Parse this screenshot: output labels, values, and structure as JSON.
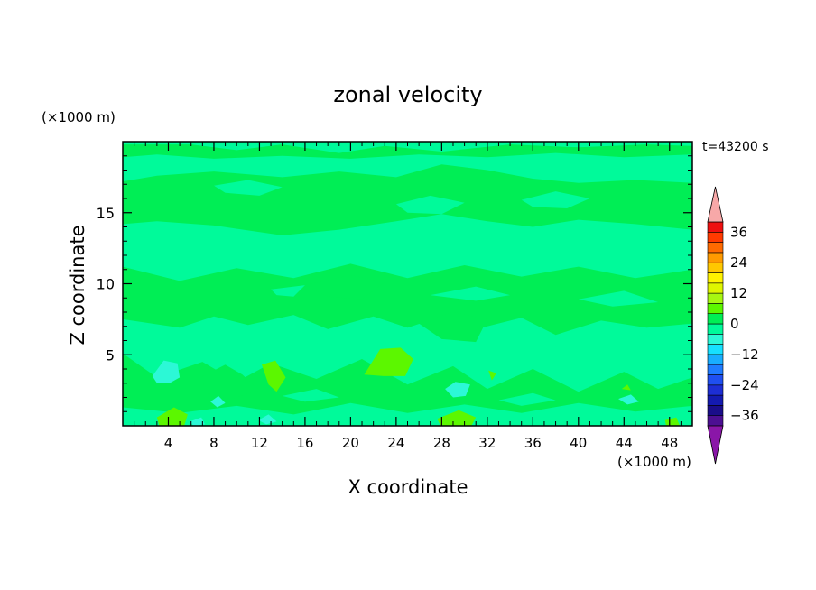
{
  "chart_data": {
    "type": "heatmap",
    "title": "zonal velocity",
    "time_label": "t=43200 s",
    "xlabel": "X coordinate",
    "ylabel": "Z coordinate",
    "x_unit": "(×1000 m)",
    "y_unit": "(×1000 m)",
    "xlim": [
      0,
      50
    ],
    "ylim": [
      0,
      20
    ],
    "x_ticks": [
      4,
      8,
      12,
      16,
      20,
      24,
      28,
      32,
      36,
      40,
      44,
      48
    ],
    "y_ticks": [
      5,
      10,
      15
    ],
    "colorbar": {
      "levels": [
        -40,
        -36,
        -32,
        -28,
        -24,
        -20,
        -16,
        -12,
        -8,
        -4,
        0,
        4,
        8,
        12,
        16,
        20,
        24,
        28,
        32,
        36,
        40
      ],
      "tick_labels": [
        36,
        24,
        12,
        0,
        -12,
        -24,
        -36
      ],
      "colors": [
        "#4c0f92",
        "#1a0d8a",
        "#141ab0",
        "#1d2ed4",
        "#1f4ff0",
        "#1f7bff",
        "#19adff",
        "#17e0ff",
        "#2cf8d6",
        "#00fa9a",
        "#00ee55",
        "#5cf700",
        "#a7f711",
        "#dff500",
        "#fff200",
        "#ffc800",
        "#ff9a00",
        "#ff6a00",
        "#ff3a00",
        "#ee1010"
      ],
      "extend_low_color": "#8a16a8",
      "extend_high_color": "#f7a8a8"
    },
    "regions": [
      {
        "level": "0 to 4",
        "color": "#00ee55",
        "polygons": [
          [
            [
              0,
              17.2
            ],
            [
              3,
              17.6
            ],
            [
              8,
              17.9
            ],
            [
              14,
              17.5
            ],
            [
              19,
              17.9
            ],
            [
              24,
              17.5
            ],
            [
              28,
              18.4
            ],
            [
              32,
              18.0
            ],
            [
              36,
              17.4
            ],
            [
              40,
              17.1
            ],
            [
              45,
              17.3
            ],
            [
              50,
              17.1
            ],
            [
              50,
              13.8
            ],
            [
              45,
              14.2
            ],
            [
              40,
              14.5
            ],
            [
              36,
              14.0
            ],
            [
              32,
              14.4
            ],
            [
              28,
              14.9
            ],
            [
              24,
              14.4
            ],
            [
              19,
              13.8
            ],
            [
              14,
              13.4
            ],
            [
              8,
              14.1
            ],
            [
              3,
              14.4
            ],
            [
              0,
              14.2
            ]
          ],
          [
            [
              0,
              11.2
            ],
            [
              5,
              10.2
            ],
            [
              10,
              11.1
            ],
            [
              15,
              10.4
            ],
            [
              20,
              11.4
            ],
            [
              25,
              10.4
            ],
            [
              30,
              11.3
            ],
            [
              35,
              10.5
            ],
            [
              40,
              11.2
            ],
            [
              45,
              10.4
            ],
            [
              50,
              11.0
            ],
            [
              50,
              7.2
            ],
            [
              46,
              6.9
            ],
            [
              42,
              7.4
            ],
            [
              38,
              6.4
            ],
            [
              35,
              7.6
            ],
            [
              31,
              6.8
            ],
            [
              28,
              7.7
            ],
            [
              25,
              6.9
            ],
            [
              22,
              7.7
            ],
            [
              18,
              6.8
            ],
            [
              15,
              7.8
            ],
            [
              11,
              7.1
            ],
            [
              8,
              7.7
            ],
            [
              5,
              6.9
            ],
            [
              0,
              7.5
            ]
          ],
          [
            [
              0,
              19.8
            ],
            [
              6,
              19.8
            ],
            [
              10,
              19.4
            ],
            [
              14,
              19.8
            ],
            [
              19,
              19.2
            ],
            [
              23,
              19.7
            ],
            [
              28,
              19.3
            ],
            [
              34,
              19.8
            ],
            [
              40,
              19.6
            ],
            [
              46,
              19.8
            ],
            [
              50,
              19.7
            ],
            [
              50,
              19.1
            ],
            [
              44,
              18.9
            ],
            [
              38,
              19.2
            ],
            [
              32,
              18.9
            ],
            [
              26,
              19.1
            ],
            [
              20,
              18.8
            ],
            [
              14,
              19.0
            ],
            [
              8,
              18.8
            ],
            [
              3,
              19.1
            ],
            [
              0,
              18.9
            ]
          ],
          [
            [
              0,
              5.1
            ],
            [
              3,
              3.4
            ],
            [
              7,
              4.5
            ],
            [
              10,
              3.1
            ],
            [
              13,
              4.4
            ],
            [
              17,
              3.3
            ],
            [
              21,
              4.7
            ],
            [
              25,
              2.9
            ],
            [
              29,
              4.2
            ],
            [
              32,
              2.6
            ],
            [
              36,
              4.0
            ],
            [
              40,
              2.4
            ],
            [
              44,
              3.8
            ],
            [
              47,
              2.6
            ],
            [
              50,
              3.4
            ],
            [
              50,
              1.4
            ],
            [
              45,
              1.0
            ],
            [
              40,
              1.6
            ],
            [
              35,
              0.9
            ],
            [
              30,
              1.5
            ],
            [
              25,
              0.9
            ],
            [
              20,
              1.6
            ],
            [
              15,
              0.8
            ],
            [
              10,
              1.4
            ],
            [
              5,
              0.9
            ],
            [
              0,
              1.3
            ]
          ],
          [
            [
              7,
              3.5
            ],
            [
              9,
              4.3
            ],
            [
              10.5,
              3.6
            ],
            [
              12,
              2.5
            ],
            [
              9.5,
              1.9
            ],
            [
              7.2,
              2.3
            ]
          ],
          [
            [
              26,
              7.2
            ],
            [
              29,
              8.0
            ],
            [
              32,
              7.5
            ],
            [
              31,
              5.9
            ],
            [
              28,
              6.1
            ]
          ],
          [
            [
              16,
              9.9
            ],
            [
              20,
              10.6
            ],
            [
              23,
              10.1
            ],
            [
              21,
              8.9
            ],
            [
              18,
              9.1
            ]
          ]
        ]
      },
      {
        "level": "4 to 8",
        "color": "#5cf700",
        "polygons": [
          [
            [
              21.2,
              3.6
            ],
            [
              22.6,
              5.4
            ],
            [
              24.4,
              5.5
            ],
            [
              25.5,
              4.7
            ],
            [
              24.8,
              3.5
            ],
            [
              22.9,
              3.5
            ]
          ],
          [
            [
              12.2,
              4.3
            ],
            [
              13.4,
              4.6
            ],
            [
              14.3,
              3.4
            ],
            [
              13.5,
              2.4
            ],
            [
              12.8,
              2.9
            ]
          ],
          [
            [
              32.1,
              3.9
            ],
            [
              32.8,
              3.7
            ],
            [
              32.4,
              3.2
            ]
          ],
          [
            [
              3,
              0.6
            ],
            [
              4.5,
              1.3
            ],
            [
              5.7,
              0.8
            ],
            [
              5.4,
              0
            ],
            [
              3.2,
              0
            ]
          ],
          [
            [
              27.6,
              0.5
            ],
            [
              29.5,
              1.1
            ],
            [
              31,
              0.6
            ],
            [
              30.6,
              0
            ],
            [
              27.9,
              0
            ]
          ],
          [
            [
              43.8,
              2.6
            ],
            [
              44.3,
              2.9
            ],
            [
              44.6,
              2.5
            ]
          ],
          [
            [
              47.6,
              0.4
            ],
            [
              48.6,
              0.6
            ],
            [
              48.9,
              0
            ],
            [
              47.7,
              0
            ]
          ]
        ]
      },
      {
        "level": "-4 to 0",
        "color": "#00fa9a",
        "polygons": [
          [
            [
              8,
              16.9
            ],
            [
              11,
              17.3
            ],
            [
              14,
              16.8
            ],
            [
              12,
              16.2
            ],
            [
              9,
              16.4
            ]
          ],
          [
            [
              24,
              15.6
            ],
            [
              27,
              16.2
            ],
            [
              30,
              15.7
            ],
            [
              28,
              14.9
            ],
            [
              25,
              15.0
            ]
          ],
          [
            [
              35,
              15.9
            ],
            [
              38,
              16.5
            ],
            [
              41,
              16.0
            ],
            [
              39,
              15.3
            ],
            [
              36,
              15.4
            ]
          ],
          [
            [
              4,
              12.4
            ],
            [
              7,
              12.9
            ],
            [
              9,
              12.3
            ],
            [
              6,
              11.9
            ]
          ],
          [
            [
              13,
              9.6
            ],
            [
              16,
              9.9
            ],
            [
              15,
              9.1
            ],
            [
              13.5,
              9.2
            ]
          ],
          [
            [
              27,
              9.2
            ],
            [
              31,
              9.8
            ],
            [
              34,
              9.2
            ],
            [
              31,
              8.8
            ]
          ],
          [
            [
              40,
              8.9
            ],
            [
              44,
              9.5
            ],
            [
              47,
              8.7
            ],
            [
              43,
              8.4
            ]
          ],
          [
            [
              8,
              6.2
            ],
            [
              11,
              6.8
            ],
            [
              13,
              6.1
            ],
            [
              10,
              5.8
            ]
          ],
          [
            [
              17,
              5.8
            ],
            [
              20,
              6.3
            ],
            [
              22,
              5.9
            ],
            [
              19,
              5.4
            ]
          ],
          [
            [
              36,
              5.6
            ],
            [
              39,
              6.2
            ],
            [
              41,
              5.7
            ],
            [
              38,
              5.2
            ]
          ],
          [
            [
              44,
              6.2
            ],
            [
              47,
              6.6
            ],
            [
              49,
              6.1
            ],
            [
              46,
              5.8
            ]
          ],
          [
            [
              14,
              2.1
            ],
            [
              17,
              2.6
            ],
            [
              19,
              2.0
            ],
            [
              16,
              1.7
            ]
          ],
          [
            [
              33,
              1.8
            ],
            [
              36,
              2.3
            ],
            [
              38,
              1.8
            ],
            [
              35,
              1.4
            ]
          ],
          [
            [
              0,
              0
            ],
            [
              2,
              0.3
            ],
            [
              3,
              0.1
            ],
            [
              3,
              0
            ]
          ]
        ]
      },
      {
        "level": "-8 to -4",
        "color": "#2cf8d6",
        "polygons": [
          [
            [
              2.6,
              3.5
            ],
            [
              3.6,
              4.6
            ],
            [
              4.8,
              4.4
            ],
            [
              5.0,
              3.4
            ],
            [
              4.1,
              3.0
            ],
            [
              3.0,
              3.0
            ]
          ],
          [
            [
              28.3,
              2.6
            ],
            [
              29.2,
              3.1
            ],
            [
              30.5,
              2.9
            ],
            [
              30.1,
              2.1
            ],
            [
              29.0,
              2.0
            ]
          ],
          [
            [
              7.7,
              1.7
            ],
            [
              8.4,
              2.1
            ],
            [
              9.0,
              1.6
            ],
            [
              8.3,
              1.3
            ]
          ],
          [
            [
              11.9,
              0.4
            ],
            [
              12.8,
              0.8
            ],
            [
              13.5,
              0.3
            ],
            [
              12.6,
              0.1
            ]
          ],
          [
            [
              43.5,
              1.9
            ],
            [
              44.6,
              2.2
            ],
            [
              45.3,
              1.7
            ],
            [
              44.3,
              1.5
            ]
          ],
          [
            [
              5.9,
              0.3
            ],
            [
              6.9,
              0.6
            ],
            [
              7.2,
              0.1
            ],
            [
              6.2,
              0
            ]
          ]
        ]
      }
    ]
  }
}
